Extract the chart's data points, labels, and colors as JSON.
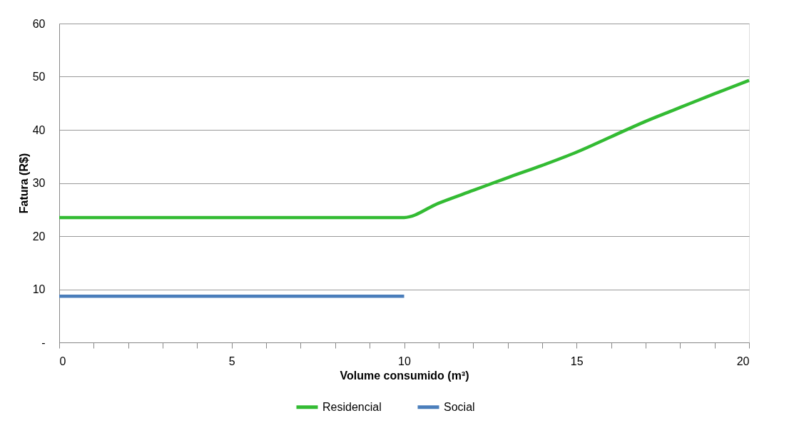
{
  "chart_data": {
    "type": "line",
    "xlabel": "Volume consumido  (m³)",
    "ylabel": "Fatura (R$)",
    "xlim": [
      0,
      20
    ],
    "ylim": [
      0,
      60
    ],
    "xticks": [
      0,
      {
        "value": 1,
        "label": null
      },
      {
        "value": 2,
        "label": null
      },
      {
        "value": 3,
        "label": null
      },
      {
        "value": 4,
        "label": null
      },
      5,
      {
        "value": 6,
        "label": null
      },
      {
        "value": 7,
        "label": null
      },
      {
        "value": 8,
        "label": null
      },
      {
        "value": 9,
        "label": null
      },
      10,
      {
        "value": 11,
        "label": null
      },
      {
        "value": 12,
        "label": null
      },
      {
        "value": 13,
        "label": null
      },
      {
        "value": 14,
        "label": null
      },
      15,
      {
        "value": 16,
        "label": null
      },
      {
        "value": 17,
        "label": null
      },
      {
        "value": 18,
        "label": null
      },
      {
        "value": 19,
        "label": null
      },
      20
    ],
    "yticks": [
      {
        "value": 0,
        "label": "-"
      },
      10,
      20,
      30,
      40,
      50,
      60
    ],
    "grid": "y",
    "legend": "bottom",
    "marker": "none",
    "line_style": "solid",
    "series": [
      {
        "name": "Residencial",
        "color": "#33bb33",
        "x": [
          0,
          1,
          2,
          3,
          4,
          5,
          6,
          7,
          8,
          9,
          10,
          11,
          12,
          13,
          14,
          15,
          16,
          17,
          18,
          19,
          20
        ],
        "values": [
          23.5,
          23.5,
          23.5,
          23.5,
          23.5,
          23.5,
          23.5,
          23.5,
          23.5,
          23.5,
          23.5,
          26.2,
          28.6,
          31.0,
          33.3,
          35.8,
          38.7,
          41.6,
          44.2,
          46.8,
          49.3
        ]
      },
      {
        "name": "Social",
        "color": "#4a7ebb",
        "x": [
          0,
          10
        ],
        "values": [
          8.7,
          8.7
        ]
      }
    ]
  }
}
